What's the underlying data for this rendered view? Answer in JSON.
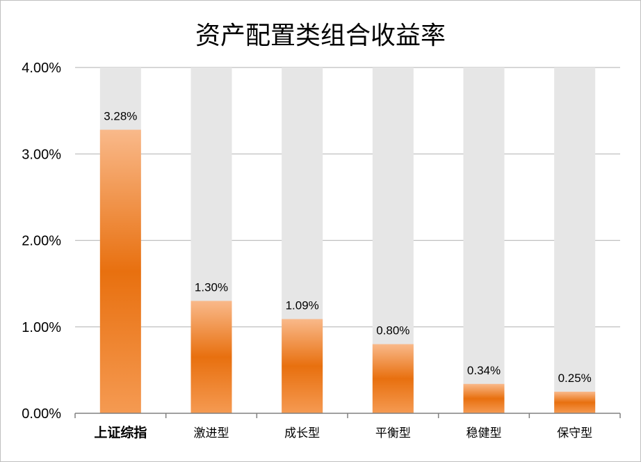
{
  "chart_data": {
    "type": "bar",
    "title": "资产配置类组合收益率",
    "categories": [
      "上证综指",
      "激进型",
      "成长型",
      "平衡型",
      "稳健型",
      "保守型"
    ],
    "values": [
      3.28,
      1.3,
      1.09,
      0.8,
      0.34,
      0.25
    ],
    "data_labels": [
      "3.28%",
      "1.30%",
      "1.09%",
      "0.80%",
      "0.34%",
      "0.25%"
    ],
    "y_ticks": [
      "0.00%",
      "1.00%",
      "2.00%",
      "3.00%",
      "4.00%"
    ],
    "y_tick_values": [
      0,
      1,
      2,
      3,
      4
    ],
    "ylim": [
      0,
      4
    ],
    "xlabel": "",
    "ylabel": "",
    "grid": true,
    "legend": "none",
    "background_bar_max": 4.0,
    "colors": {
      "bar_light": "#f9b98a",
      "bar_dark": "#e8700f",
      "track": "#e6e6e6",
      "grid": "#bfbfbf",
      "axis": "#808080"
    }
  }
}
